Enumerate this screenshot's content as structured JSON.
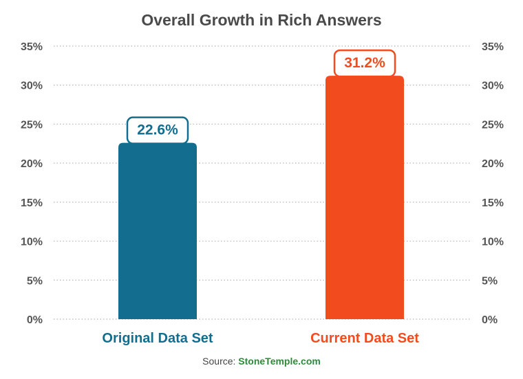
{
  "chart_data": {
    "type": "bar",
    "title": "Overall Growth in Rich Answers",
    "categories": [
      "Original Data Set",
      "Current Data Set"
    ],
    "values": [
      22.6,
      31.2
    ],
    "value_labels": [
      "22.6%",
      "31.2%"
    ],
    "colors": [
      "#136d8e",
      "#f14b1e"
    ],
    "ylim": [
      0,
      35
    ],
    "y_ticks": [
      0,
      5,
      10,
      15,
      20,
      25,
      30,
      35
    ],
    "y_tick_labels": [
      "0%",
      "5%",
      "10%",
      "15%",
      "20%",
      "25%",
      "30%",
      "35%"
    ],
    "y_axis_sides": "both",
    "grid": true,
    "xlabel": "",
    "ylabel": ""
  },
  "source": {
    "prefix": "Source: ",
    "site": "StoneTemple.com"
  }
}
